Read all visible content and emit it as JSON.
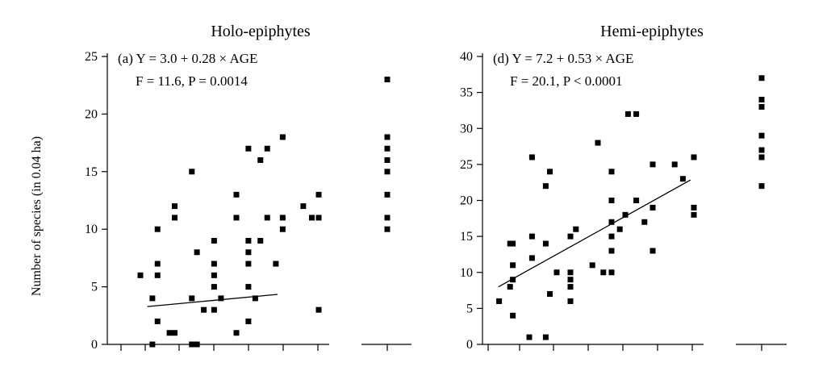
{
  "chart_data": [
    {
      "type": "scatter",
      "title": "Holo-epiphytes",
      "ylabel": "Number of species (in 0.04 ha)",
      "xlabel": "",
      "ylim": [
        0,
        25
      ],
      "yticks": [
        0,
        5,
        10,
        15,
        20,
        25
      ],
      "equation": "(a) Y = 3.0 + 0.28 × AGE",
      "stats": "F = 11.6, P = 0.0014",
      "regression": {
        "intercept": 3.0,
        "slope": 0.28,
        "x_range": [
          1.0,
          4.8
        ]
      },
      "points": [
        [
          0.8,
          6
        ],
        [
          1.15,
          4
        ],
        [
          1.15,
          0
        ],
        [
          1.3,
          10
        ],
        [
          1.3,
          7
        ],
        [
          1.3,
          6
        ],
        [
          1.3,
          2
        ],
        [
          1.65,
          1
        ],
        [
          1.8,
          12
        ],
        [
          1.8,
          11
        ],
        [
          1.8,
          1
        ],
        [
          2.3,
          15
        ],
        [
          2.3,
          4
        ],
        [
          2.3,
          0
        ],
        [
          2.45,
          8
        ],
        [
          2.45,
          0
        ],
        [
          2.65,
          3
        ],
        [
          2.95,
          9
        ],
        [
          2.95,
          7
        ],
        [
          2.95,
          6
        ],
        [
          2.95,
          5
        ],
        [
          2.95,
          3
        ],
        [
          3.15,
          4
        ],
        [
          3.6,
          13
        ],
        [
          3.6,
          11
        ],
        [
          3.6,
          1
        ],
        [
          3.95,
          17
        ],
        [
          3.95,
          9
        ],
        [
          3.95,
          8
        ],
        [
          3.95,
          7
        ],
        [
          3.95,
          5
        ],
        [
          3.95,
          2
        ],
        [
          4.15,
          4
        ],
        [
          4.3,
          16
        ],
        [
          4.3,
          9
        ],
        [
          4.5,
          17
        ],
        [
          4.5,
          11
        ],
        [
          4.75,
          7
        ],
        [
          4.95,
          18
        ],
        [
          4.95,
          11
        ],
        [
          4.95,
          10
        ],
        [
          5.55,
          12
        ],
        [
          5.8,
          11
        ],
        [
          6.0,
          13
        ],
        [
          6.0,
          11
        ],
        [
          6.0,
          3
        ]
      ],
      "reference": [
        23,
        18,
        17,
        16,
        15,
        13,
        11,
        10
      ]
    },
    {
      "type": "scatter",
      "title": "Hemi-epiphytes",
      "ylabel": "",
      "xlabel": "",
      "ylim": [
        0,
        40
      ],
      "yticks": [
        0,
        5,
        10,
        15,
        20,
        25,
        30,
        35,
        40
      ],
      "equation": "(d) Y = 7.2 + 0.53 × AGE",
      "stats": "F = 20.1, P < 0.0001",
      "regression": {
        "intercept": 7.2,
        "slope": 0.53,
        "x_range": [
          1.5,
          29.5
        ]
      },
      "points": [
        [
          1.6,
          6
        ],
        [
          3.2,
          14
        ],
        [
          3.2,
          8
        ],
        [
          3.6,
          14
        ],
        [
          3.6,
          11
        ],
        [
          3.6,
          9
        ],
        [
          3.6,
          4
        ],
        [
          6.0,
          1
        ],
        [
          6.4,
          26
        ],
        [
          6.4,
          15
        ],
        [
          6.4,
          12
        ],
        [
          8.4,
          22
        ],
        [
          8.4,
          14
        ],
        [
          8.4,
          1
        ],
        [
          9.0,
          24
        ],
        [
          9.0,
          7
        ],
        [
          10.0,
          10
        ],
        [
          12.0,
          15
        ],
        [
          12.0,
          10
        ],
        [
          12.0,
          9
        ],
        [
          12.0,
          8
        ],
        [
          12.0,
          6
        ],
        [
          12.8,
          16
        ],
        [
          15.2,
          11
        ],
        [
          16.0,
          28
        ],
        [
          16.8,
          10
        ],
        [
          18.0,
          24
        ],
        [
          18.0,
          20
        ],
        [
          18.0,
          17
        ],
        [
          18.0,
          15
        ],
        [
          18.0,
          13
        ],
        [
          18.0,
          10
        ],
        [
          19.2,
          16
        ],
        [
          20.0,
          18
        ],
        [
          20.4,
          32
        ],
        [
          21.6,
          32
        ],
        [
          21.6,
          20
        ],
        [
          22.8,
          17
        ],
        [
          24.0,
          25
        ],
        [
          24.0,
          19
        ],
        [
          24.0,
          13
        ],
        [
          27.2,
          25
        ],
        [
          28.4,
          23
        ],
        [
          30.0,
          26
        ],
        [
          30.0,
          19
        ],
        [
          30.0,
          18
        ]
      ],
      "reference": [
        37,
        34,
        33,
        29,
        27,
        26,
        22
      ]
    }
  ]
}
